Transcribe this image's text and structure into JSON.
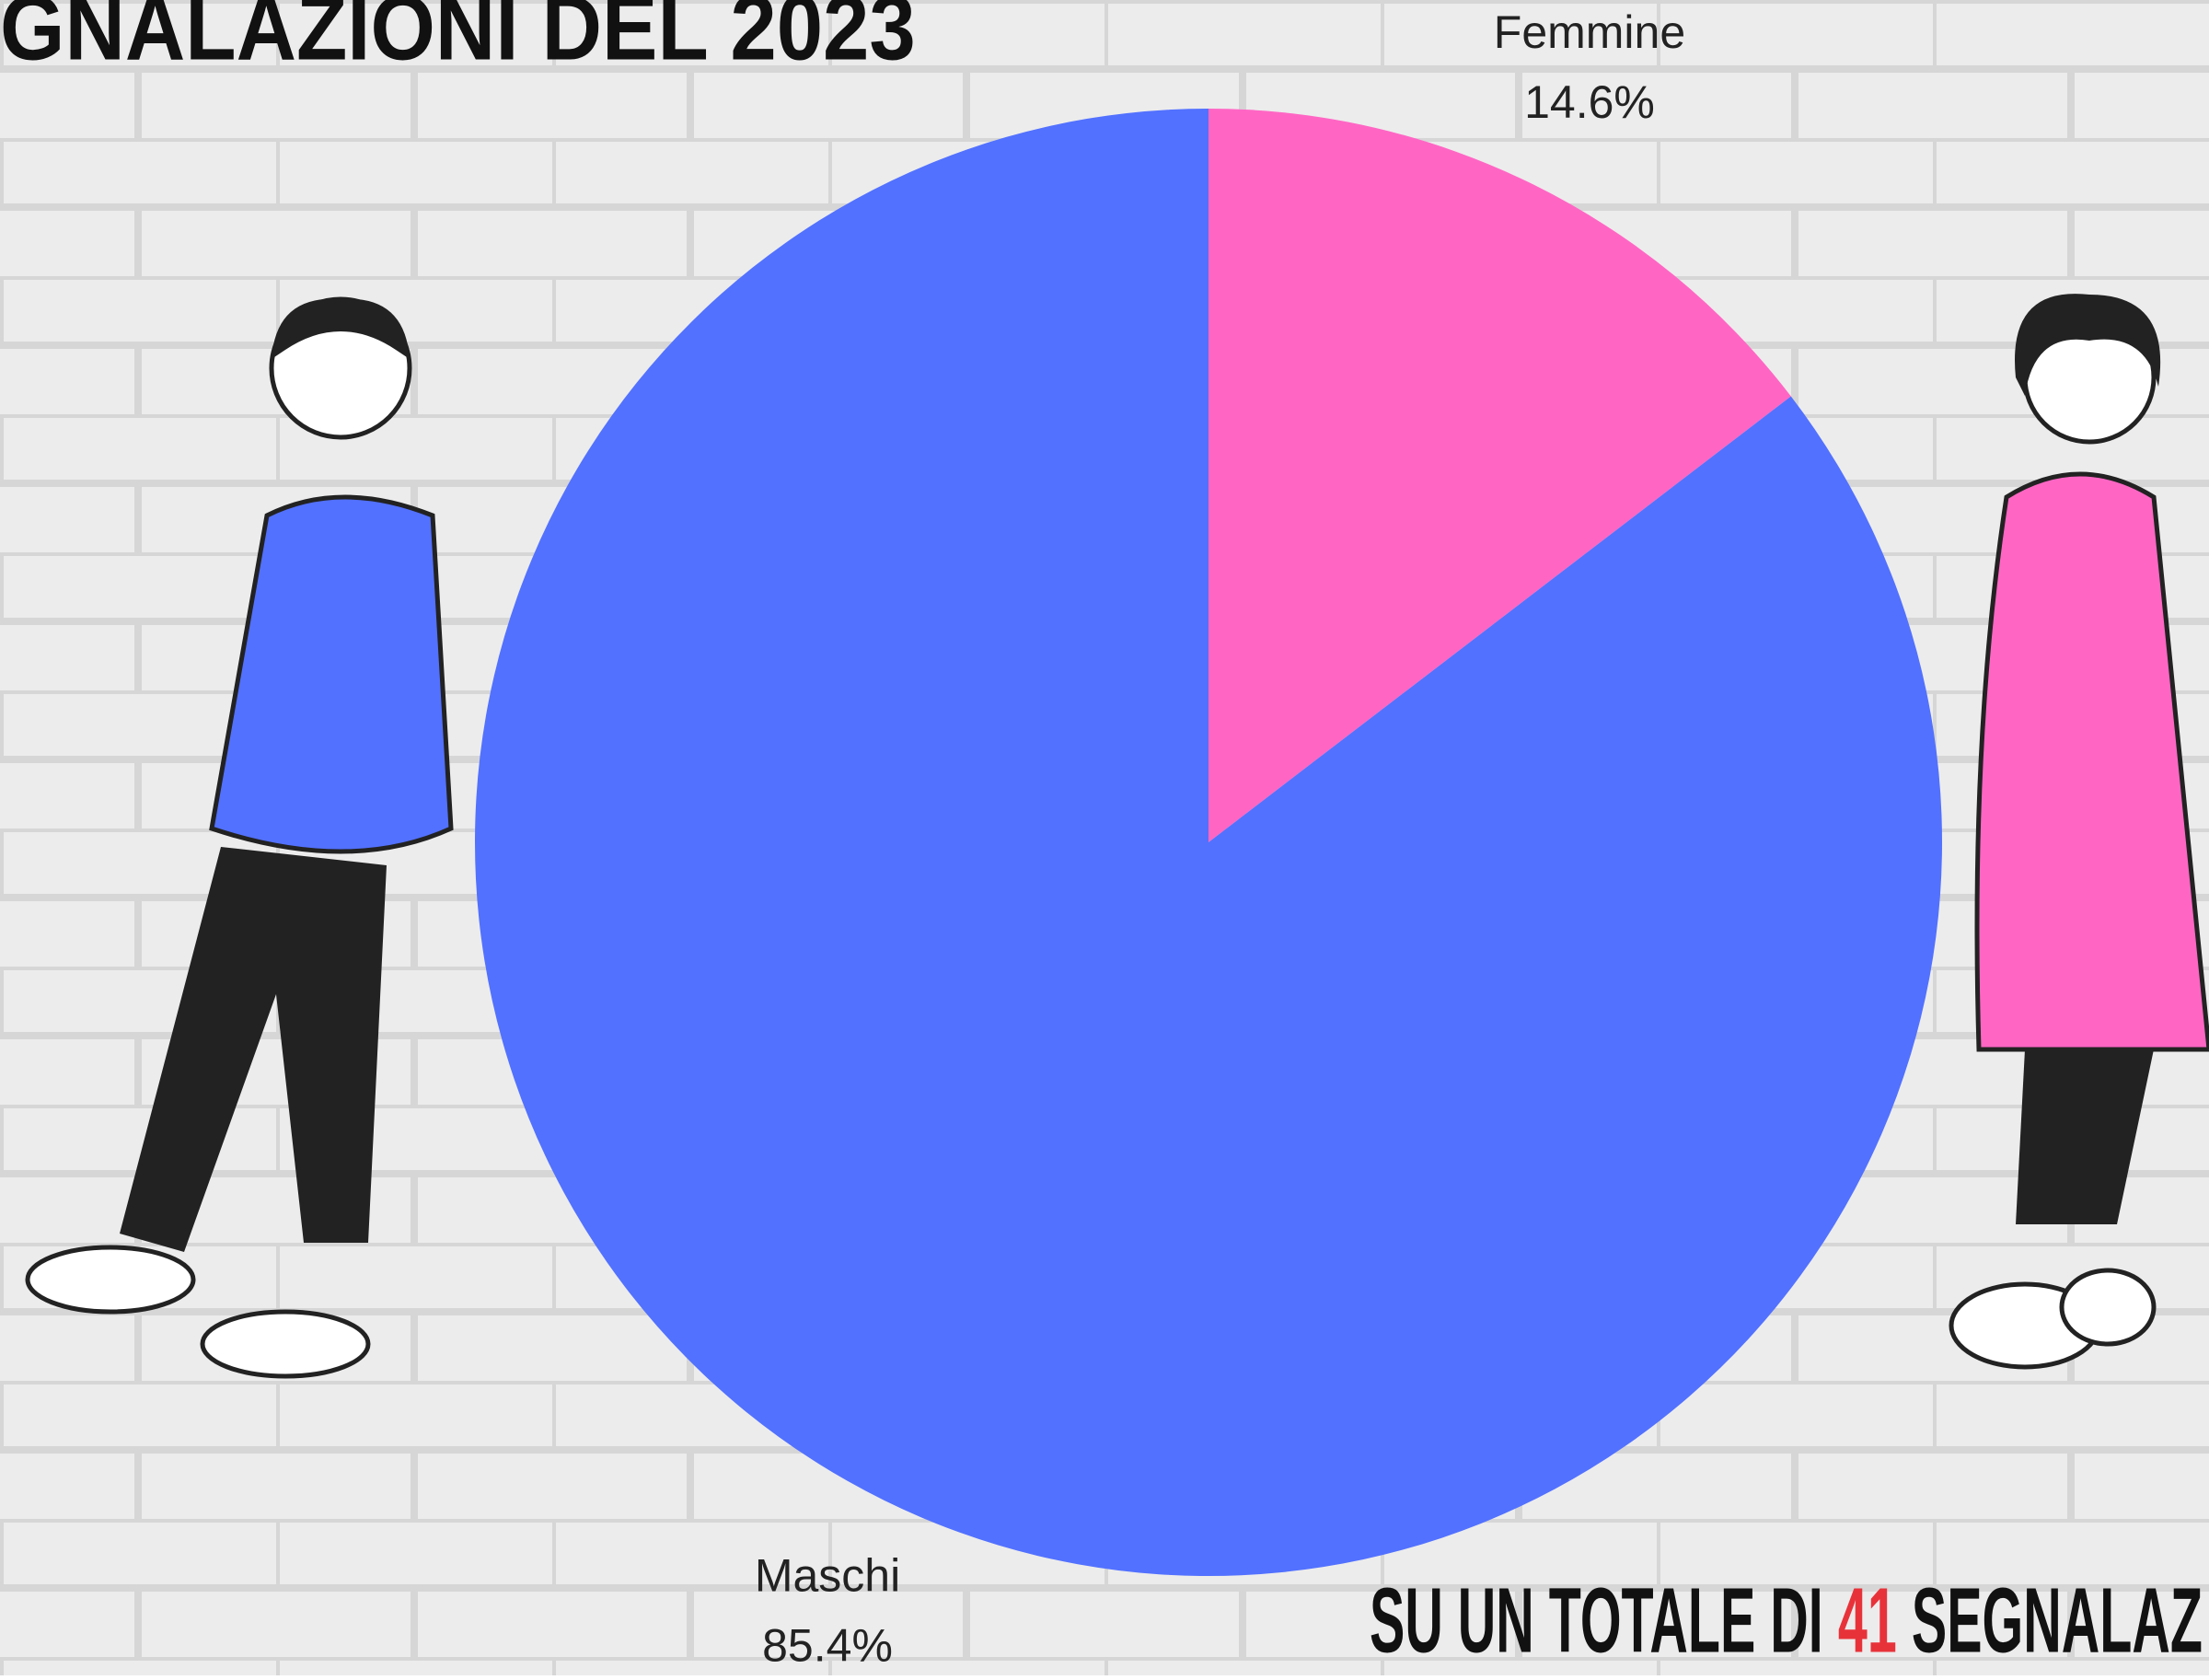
{
  "chart_data": {
    "type": "pie",
    "title": "GNALAZIONI DEL 2023",
    "categories": [
      "Femmine",
      "Maschi"
    ],
    "values": [
      14.6,
      85.4
    ],
    "value_labels": [
      "14.6%",
      "85.4%"
    ],
    "colors": [
      "#ff66c4",
      "#5271ff"
    ],
    "footer": {
      "prefix": "SU UN TOTALE DI",
      "total": 41,
      "suffix": "SEGNALAZ"
    }
  }
}
